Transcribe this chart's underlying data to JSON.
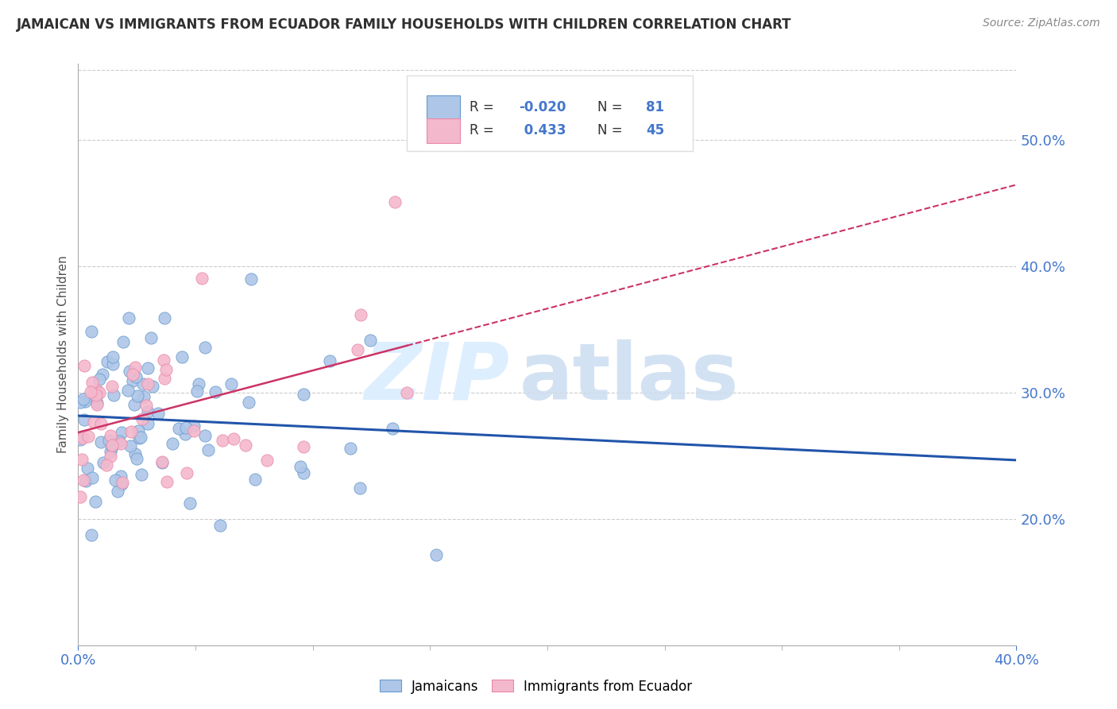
{
  "title": "JAMAICAN VS IMMIGRANTS FROM ECUADOR FAMILY HOUSEHOLDS WITH CHILDREN CORRELATION CHART",
  "source": "Source: ZipAtlas.com",
  "ylabel": "Family Households with Children",
  "xlim": [
    0.0,
    0.4
  ],
  "ylim": [
    0.1,
    0.56
  ],
  "x_ticks": [
    0.0,
    0.4
  ],
  "x_tick_labels": [
    "0.0%",
    "40.0%"
  ],
  "y_ticks": [
    0.2,
    0.3,
    0.4,
    0.5
  ],
  "y_tick_labels": [
    "20.0%",
    "30.0%",
    "40.0%",
    "50.0%"
  ],
  "blue_R": -0.02,
  "blue_N": 81,
  "pink_R": 0.433,
  "pink_N": 45,
  "blue_scatter_fill": "#aec6e8",
  "blue_scatter_edge": "#6699cc",
  "pink_scatter_fill": "#f4b8cc",
  "pink_scatter_edge": "#e888a8",
  "blue_line_color": "#2255aa",
  "pink_line_color": "#cc3366",
  "background_color": "#ffffff",
  "grid_color": "#cccccc",
  "title_color": "#303030",
  "axis_tick_color": "#4477cc",
  "legend_label_blue": "Jamaicans",
  "legend_label_pink": "Immigrants from Ecuador"
}
